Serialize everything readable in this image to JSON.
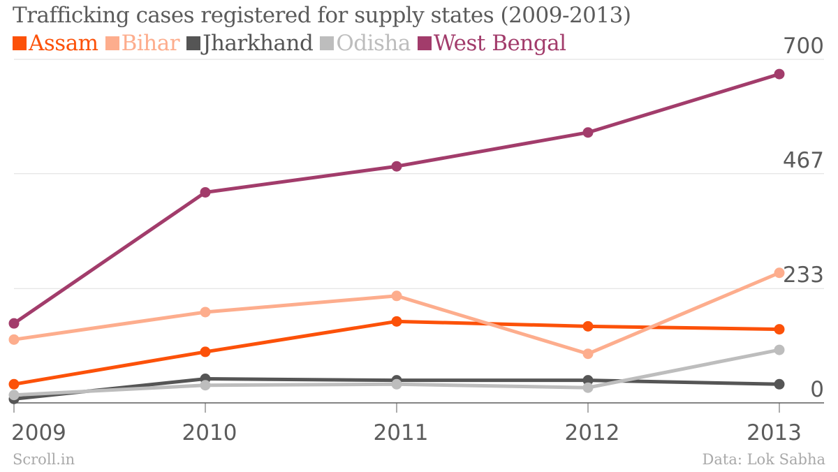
{
  "title": "Trafficking cases registered for supply states (2009-2013)",
  "source": "Data: Lok Sabha",
  "brand": "Scroll.in",
  "chart_data": {
    "type": "line",
    "x": [
      "2009",
      "2010",
      "2011",
      "2012",
      "2013"
    ],
    "ylim": [
      0,
      700
    ],
    "yticks": [
      "0",
      "233",
      "467",
      "700"
    ],
    "grid": true,
    "legend_position": "top-left",
    "series": [
      {
        "name": "Assam",
        "color": "#fc5109",
        "values": [
          38,
          104,
          166,
          156,
          150
        ]
      },
      {
        "name": "Bihar",
        "color": "#fdad8d",
        "values": [
          129,
          185,
          218,
          100,
          265
        ]
      },
      {
        "name": "Jharkhand",
        "color": "#555555",
        "values": [
          8,
          49,
          46,
          46,
          38
        ]
      },
      {
        "name": "Odisha",
        "color": "#bdbdbd",
        "values": [
          16,
          36,
          38,
          31,
          108
        ]
      },
      {
        "name": "West Bengal",
        "color": "#a23c6b",
        "values": [
          162,
          429,
          482,
          551,
          670
        ]
      }
    ]
  }
}
